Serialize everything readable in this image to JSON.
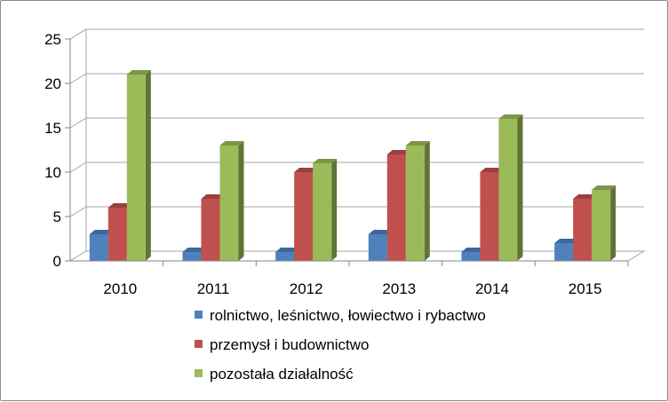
{
  "chart_data": {
    "type": "bar",
    "title": "",
    "xlabel": "",
    "ylabel": "",
    "ylim": [
      0,
      25
    ],
    "yticks": [
      "0",
      "5",
      "10",
      "15",
      "20",
      "25"
    ],
    "categories": [
      "2010",
      "2011",
      "2012",
      "2013",
      "2014",
      "2015"
    ],
    "series": [
      {
        "name": "rolnictwo, leśnictwo, łowiectwo i rybactwo",
        "color": "#4f81bd",
        "values": [
          3,
          1,
          1,
          3,
          1,
          2
        ]
      },
      {
        "name": "przemysł i budownictwo",
        "color": "#c0504d",
        "values": [
          6,
          7,
          10,
          12,
          10,
          7
        ]
      },
      {
        "name": "pozostała działalność",
        "color": "#9bbb59",
        "values": [
          21,
          13,
          11,
          13,
          16,
          8
        ]
      }
    ],
    "grid": true,
    "legend": "bottom",
    "style": "3d-clustered-column"
  }
}
